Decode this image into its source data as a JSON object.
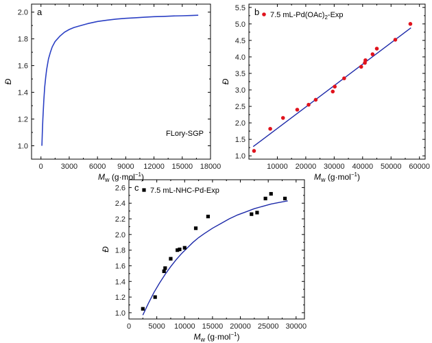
{
  "chart_data": [
    {
      "panel": "a",
      "type": "line",
      "xlabel": "Mw (g·mol⁻¹)",
      "xlabel_main": "M",
      "xlabel_sub": "w",
      "xlabel_units": " (g·mol",
      "xlabel_sup": "−1",
      "xlabel_close": ")",
      "ylabel": "Đ",
      "xlim": [
        -1000,
        18000
      ],
      "ylim": [
        0.9,
        2.06
      ],
      "xticks": [
        0,
        3000,
        6000,
        9000,
        12000,
        15000,
        18000
      ],
      "yticks": [
        1.0,
        1.2,
        1.4,
        1.6,
        1.8,
        2.0
      ],
      "annotation": "FLory-SGP",
      "series": [
        {
          "color": "#2a3fc4",
          "x": [
            100,
            150,
            200,
            300,
            400,
            500,
            600,
            800,
            1000,
            1200,
            1500,
            2000,
            2500,
            3000,
            3500,
            4000,
            5000,
            6000,
            7000,
            8000,
            9000,
            10000,
            11000,
            12000,
            13000,
            14000,
            15000,
            16000,
            16700
          ],
          "y": [
            1.0,
            1.11,
            1.2,
            1.34,
            1.44,
            1.51,
            1.57,
            1.65,
            1.7,
            1.74,
            1.78,
            1.82,
            1.85,
            1.87,
            1.885,
            1.895,
            1.915,
            1.93,
            1.94,
            1.948,
            1.954,
            1.958,
            1.962,
            1.966,
            1.968,
            1.971,
            1.973,
            1.975,
            1.977
          ]
        }
      ]
    },
    {
      "panel": "b",
      "type": "scatter",
      "xlabel": "Mw (g·mol⁻¹)",
      "xlabel_main": "M",
      "xlabel_sub": "w",
      "xlabel_units": " (g·mol",
      "xlabel_sup": "−1",
      "xlabel_close": ")",
      "ylabel": "Đ",
      "xlim": [
        0,
        62000
      ],
      "ylim": [
        0.9,
        5.6
      ],
      "xticks": [
        10000,
        20000,
        30000,
        40000,
        50000,
        60000
      ],
      "yticks": [
        1.0,
        1.5,
        2.0,
        2.5,
        3.0,
        3.5,
        4.0,
        4.5,
        5.0,
        5.5
      ],
      "legend": {
        "position": "top-left",
        "label_main": "7.5 mL-Pd(OAc)",
        "label_sub": "2",
        "label_tail": "-Exp",
        "marker": "circle",
        "color": "#e0131d"
      },
      "points": {
        "color": "#e0131d",
        "x": [
          1800,
          7500,
          12000,
          17000,
          21000,
          23500,
          29500,
          30200,
          33500,
          39500,
          40800,
          41000,
          43500,
          45000,
          51500,
          56800
        ],
        "y": [
          1.15,
          1.82,
          2.15,
          2.4,
          2.55,
          2.7,
          2.95,
          3.1,
          3.35,
          3.7,
          3.82,
          3.9,
          4.08,
          4.25,
          4.52,
          5.0
        ]
      },
      "fit": {
        "color": "#1b28a8",
        "x": [
          1500,
          57000
        ],
        "y": [
          1.28,
          4.88
        ]
      }
    },
    {
      "panel": "c",
      "type": "scatter",
      "xlabel": "Mw (g·mol⁻¹)",
      "xlabel_main": "M",
      "xlabel_sub": "w",
      "xlabel_units": " (g·mol",
      "xlabel_sup": "−1",
      "xlabel_close": ")",
      "ylabel": "Đ",
      "xlim": [
        0,
        31500
      ],
      "ylim": [
        0.92,
        2.7
      ],
      "xticks": [
        0,
        5000,
        10000,
        15000,
        20000,
        25000,
        30000
      ],
      "yticks": [
        1.0,
        1.2,
        1.4,
        1.6,
        1.8,
        2.0,
        2.2,
        2.4,
        2.6
      ],
      "legend": {
        "position": "top-left",
        "label_main": "7.5 mL-NHC-Pd-Exp",
        "label_sub": "",
        "label_tail": "",
        "marker": "square",
        "color": "#000000"
      },
      "points": {
        "color": "#000000",
        "x": [
          2500,
          4700,
          6300,
          6500,
          7500,
          8700,
          9100,
          10000,
          12000,
          14200,
          22000,
          23000,
          24500,
          25500,
          28000
        ],
        "y": [
          1.05,
          1.2,
          1.53,
          1.57,
          1.69,
          1.8,
          1.81,
          1.83,
          2.08,
          2.23,
          2.26,
          2.28,
          2.46,
          2.52,
          2.46
        ]
      },
      "fit": {
        "color": "#1b28a8",
        "x": [
          2500,
          3500,
          4500,
          5500,
          6500,
          7500,
          8500,
          9500,
          10500,
          11500,
          12500,
          13500,
          15000,
          16500,
          18000,
          19500,
          21000,
          22500,
          24000,
          25500,
          27000,
          28500
        ],
        "y": [
          0.97,
          1.12,
          1.26,
          1.38,
          1.49,
          1.59,
          1.68,
          1.76,
          1.83,
          1.9,
          1.96,
          2.01,
          2.08,
          2.14,
          2.2,
          2.25,
          2.29,
          2.33,
          2.36,
          2.39,
          2.41,
          2.43
        ]
      }
    }
  ]
}
